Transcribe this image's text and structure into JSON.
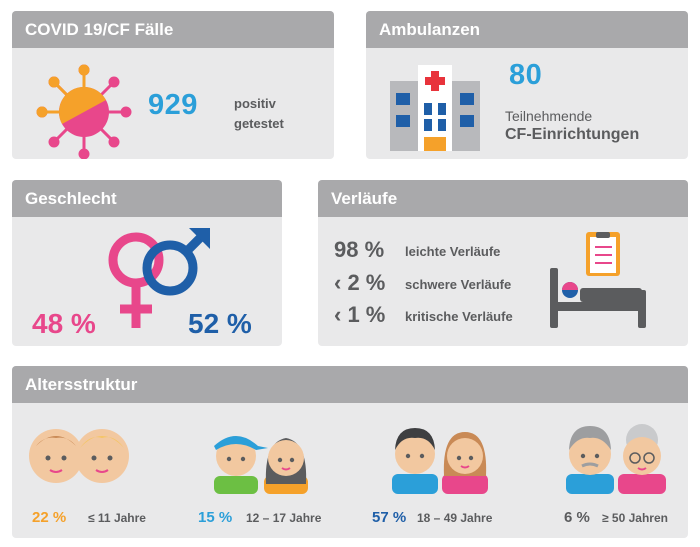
{
  "covid": {
    "title": "COVID 19/CF Fälle",
    "count": "929",
    "label_line1": "positiv",
    "label_line2": "getestet"
  },
  "ambulanzen": {
    "title": "Ambulanzen",
    "count": "80",
    "label_line1": "Teilnehmende",
    "label_line2": "CF-Einrichtungen"
  },
  "geschlecht": {
    "title": "Geschlecht",
    "female_pct": "48 %",
    "male_pct": "52 %"
  },
  "verlaeufe": {
    "title": "Verläufe",
    "rows": [
      {
        "value": "98 %",
        "label": "leichte Verläufe"
      },
      {
        "value": "‹ 2 %",
        "label": "schwere Verläufe"
      },
      {
        "value": "‹ 1 %",
        "label": "kritische Verläufe"
      }
    ]
  },
  "altersstruktur": {
    "title": "Altersstruktur",
    "groups": [
      {
        "pct": "22 %",
        "label": "≤ 11 Jahre",
        "color": "#f5a12a"
      },
      {
        "pct": "15 %",
        "label": "12 – 17 Jahre",
        "color": "#2b9fd9"
      },
      {
        "pct": "57 %",
        "label": "18 – 49 Jahre",
        "color": "#1f5fa8"
      },
      {
        "pct": "6 %",
        "label": "≥ 50 Jahren",
        "color": "#5b5c5e"
      }
    ]
  },
  "colors": {
    "pink": "#e8478b",
    "blue": "#1f5fa8",
    "light_blue": "#2b9fd9",
    "orange": "#f5a12a",
    "header_gray": "#a9a9ab"
  }
}
